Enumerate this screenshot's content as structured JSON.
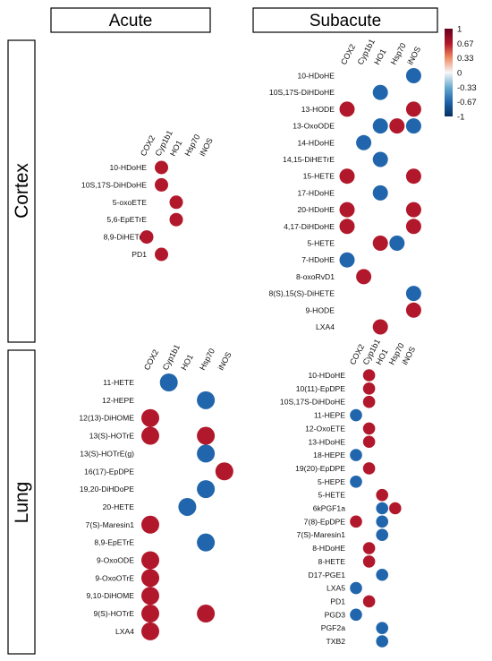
{
  "headers": {
    "acute": "Acute",
    "subacute": "Subacute"
  },
  "side_labels": {
    "cortex": "Cortex",
    "lung": "Lung"
  },
  "colorbar": {
    "ticks": [
      "1",
      "0.67",
      "0.33",
      "0",
      "-0.33",
      "-0.67",
      "-1"
    ],
    "colors": {
      "positive": "#b2182b",
      "negative": "#2166ac",
      "zero": "#f7f7f7"
    },
    "range": [
      -1,
      1
    ]
  },
  "chart_data": [
    {
      "type": "heatmap",
      "panel": "Cortex Acute",
      "columns": [
        "COX2",
        "Cyp1b1",
        "HO1",
        "Hsp70",
        "iNOS"
      ],
      "rows": [
        "10-HDoHE",
        "10S,17S-DiHDoHE",
        "5-oxoETE",
        "5,6-EpETrE",
        "8,9-DiHETrE",
        "PD1"
      ],
      "values": [
        [
          0,
          1,
          0,
          0,
          0
        ],
        [
          0,
          1,
          0,
          0,
          0
        ],
        [
          0,
          0,
          1,
          0,
          0
        ],
        [
          0,
          0,
          1,
          0,
          0
        ],
        [
          1,
          0,
          0,
          0,
          0
        ],
        [
          0,
          1,
          0,
          0,
          0
        ]
      ]
    },
    {
      "type": "heatmap",
      "panel": "Cortex Subacute",
      "columns": [
        "COX2",
        "Cyp1b1",
        "HO1",
        "Hsp70",
        "iNOS"
      ],
      "rows": [
        "10-HDoHE",
        "10S,17S-DiHDoHE",
        "13-HODE",
        "13-OxoODE",
        "14-HDoHE",
        "14,15-DiHETrE",
        "15-HETE",
        "17-HDoHE",
        "20-HDoHE",
        "4,17-DiHDoHE",
        "5-HETE",
        "7-HDoHE",
        "8-oxoRvD1",
        "8(S),15(S)-DiHETE",
        "9-HODE",
        "LXA4"
      ],
      "values": [
        [
          0,
          0,
          0,
          0,
          -1
        ],
        [
          0,
          0,
          -1,
          0,
          0
        ],
        [
          1,
          0,
          0,
          0,
          1
        ],
        [
          0,
          0,
          -1,
          1,
          -1
        ],
        [
          0,
          -1,
          0,
          0,
          0
        ],
        [
          0,
          0,
          -1,
          0,
          0
        ],
        [
          1,
          0,
          0,
          0,
          1
        ],
        [
          0,
          0,
          -1,
          0,
          0
        ],
        [
          1,
          0,
          0,
          0,
          1
        ],
        [
          1,
          0,
          0,
          0,
          1
        ],
        [
          0,
          0,
          1,
          -1,
          0
        ],
        [
          -1,
          0,
          0,
          0,
          0
        ],
        [
          0,
          1,
          0,
          0,
          0
        ],
        [
          0,
          0,
          0,
          0,
          -1
        ],
        [
          0,
          0,
          0,
          0,
          1
        ],
        [
          0,
          0,
          1,
          0,
          0
        ]
      ]
    },
    {
      "type": "heatmap",
      "panel": "Lung Acute",
      "columns": [
        "COX2",
        "Cyp1b1",
        "HO1",
        "Hsp70",
        "iNOS"
      ],
      "rows": [
        "11-HETE",
        "12-HEPE",
        "12(13)-DiHOME",
        "13(S)-HOTrE",
        "13(S)-HOTrE(g)",
        "16(17)-EpDPE",
        "19,20-DiHDoPE",
        "20-HETE",
        "7(S)-Maresin1",
        "8,9-EpETrE",
        "9-OxoODE",
        "9-OxoOTrE",
        "9,10-DiHOME",
        "9(S)-HOTrE",
        "LXA4"
      ],
      "values": [
        [
          0,
          -1,
          0,
          0,
          0
        ],
        [
          0,
          0,
          0,
          -1,
          0
        ],
        [
          1,
          0,
          0,
          0,
          0
        ],
        [
          1,
          0,
          0,
          1,
          0
        ],
        [
          0,
          0,
          0,
          -1,
          0
        ],
        [
          0,
          0,
          0,
          0,
          1
        ],
        [
          0,
          0,
          0,
          -1,
          0
        ],
        [
          0,
          0,
          -1,
          0,
          0
        ],
        [
          1,
          0,
          0,
          0,
          0
        ],
        [
          0,
          0,
          0,
          -1,
          0
        ],
        [
          1,
          0,
          0,
          0,
          0
        ],
        [
          1,
          0,
          0,
          0,
          0
        ],
        [
          1,
          0,
          0,
          0,
          0
        ],
        [
          1,
          0,
          0,
          1,
          0
        ],
        [
          1,
          0,
          0,
          0,
          0
        ]
      ]
    },
    {
      "type": "heatmap",
      "panel": "Lung Subacute",
      "columns": [
        "COX2",
        "Cyp1b1",
        "HO1",
        "Hsp70",
        "iNOS"
      ],
      "rows": [
        "10-HDoHE",
        "10(11)-EpDPE",
        "10S,17S-DiHDoHE",
        "11-HEPE",
        "12-OxoETE",
        "13-HDoHE",
        "18-HEPE",
        "19(20)-EpDPE",
        "5-HEPE",
        "5-HETE",
        "6kPGF1a",
        "7(8)-EpDPE",
        "7(S)-Maresin1",
        "8-HDoHE",
        "8-HETE",
        "D17-PGE1",
        "LXA5",
        "PD1",
        "PGD3",
        "PGF2a",
        "TXB2"
      ],
      "values": [
        [
          0,
          1,
          0,
          0,
          0
        ],
        [
          0,
          1,
          0,
          0,
          0
        ],
        [
          0,
          1,
          0,
          0,
          0
        ],
        [
          -1,
          0,
          0,
          0,
          0
        ],
        [
          0,
          1,
          0,
          0,
          0
        ],
        [
          0,
          1,
          0,
          0,
          0
        ],
        [
          -1,
          0,
          0,
          0,
          0
        ],
        [
          0,
          1,
          0,
          0,
          0
        ],
        [
          -1,
          0,
          0,
          0,
          0
        ],
        [
          0,
          0,
          1,
          0,
          0
        ],
        [
          0,
          0,
          -1,
          1,
          0
        ],
        [
          1,
          0,
          -1,
          0,
          0
        ],
        [
          0,
          0,
          -1,
          0,
          0
        ],
        [
          0,
          1,
          0,
          0,
          0
        ],
        [
          0,
          1,
          0,
          0,
          0
        ],
        [
          0,
          0,
          -1,
          0,
          0
        ],
        [
          -1,
          0,
          0,
          0,
          0
        ],
        [
          0,
          1,
          0,
          0,
          0
        ],
        [
          -1,
          0,
          0,
          0,
          0
        ],
        [
          0,
          0,
          -1,
          0,
          0
        ],
        [
          0,
          0,
          -1,
          0,
          0
        ]
      ]
    }
  ]
}
